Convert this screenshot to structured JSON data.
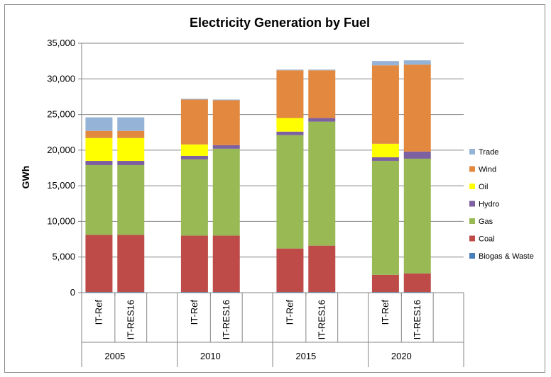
{
  "chart_data": {
    "type": "bar",
    "stacked": true,
    "title": "Electricity Generation by Fuel",
    "ylabel": "GWh",
    "xlabel": "",
    "ylim": [
      0,
      35000
    ],
    "yticks": [
      0,
      5000,
      10000,
      15000,
      20000,
      25000,
      30000,
      35000
    ],
    "ytick_labels": [
      "0",
      "5,000",
      "10,000",
      "15,000",
      "20,000",
      "25,000",
      "30,000",
      "35,000"
    ],
    "grid": "horizontal",
    "legend_position": "right",
    "groups": [
      "2005",
      "2010",
      "2015",
      "2020"
    ],
    "scenarios": [
      "IT-Ref",
      "IT-RES16"
    ],
    "categories": [
      "IT-Ref",
      "IT-RES16",
      "IT-Ref",
      "IT-RES16",
      "IT-Ref",
      "IT-RES16",
      "IT-Ref",
      "IT-RES16"
    ],
    "category_groups": [
      "2005",
      "2005",
      "2010",
      "2010",
      "2015",
      "2015",
      "2020",
      "2020"
    ],
    "series": [
      {
        "name": "Biogas & Waste",
        "color": "#4a7ebb",
        "values": [
          100,
          100,
          100,
          100,
          100,
          100,
          100,
          100
        ]
      },
      {
        "name": "Coal",
        "color": "#be4b48",
        "values": [
          8000,
          8000,
          7900,
          7900,
          6100,
          6500,
          2400,
          2600
        ]
      },
      {
        "name": "Gas",
        "color": "#98b954",
        "values": [
          9800,
          9800,
          10700,
          12200,
          15900,
          17400,
          16000,
          16100
        ]
      },
      {
        "name": "Hydro",
        "color": "#7d60a0",
        "values": [
          600,
          600,
          500,
          500,
          500,
          500,
          500,
          1000
        ]
      },
      {
        "name": "Oil",
        "color": "#ffff00",
        "values": [
          3200,
          3200,
          1600,
          0,
          1900,
          0,
          1900,
          0
        ]
      },
      {
        "name": "Wind",
        "color": "#e3883f",
        "values": [
          1000,
          1000,
          6300,
          6300,
          6700,
          6700,
          11000,
          12200
        ]
      },
      {
        "name": "Trade",
        "color": "#95b3d7",
        "values": [
          1900,
          1900,
          100,
          100,
          100,
          100,
          600,
          600
        ]
      }
    ]
  }
}
